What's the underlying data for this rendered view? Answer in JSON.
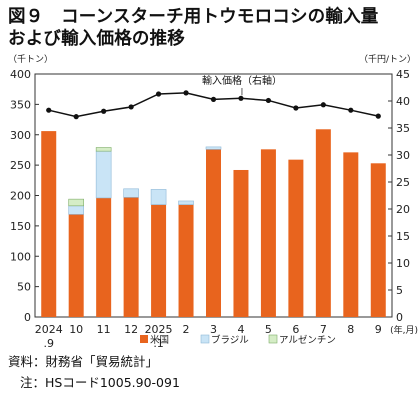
{
  "title_line1": "図９　コーンスターチ用トウモロコシの輸入量",
  "title_line2": "および輸入価格の推移",
  "source_label": "資料：財務省「貿易統計」",
  "note_label": "注：HSコード1005.90-091",
  "colors": {
    "us": "#e8641e",
    "brazil": "#c9e4f6",
    "argentina": "#d5edc6",
    "line": "#111111"
  },
  "chart_data": {
    "type": "bar",
    "stacked": true,
    "categories": [
      "2024\n.9",
      "10",
      "11",
      "12",
      "2025\n.1",
      "2",
      "3",
      "4",
      "5",
      "6",
      "7",
      "8",
      "9"
    ],
    "x_unit": "(年,月)",
    "left_axis": {
      "label": "（千トン）",
      "ylim": [
        0,
        400
      ],
      "ticks": [
        0,
        50,
        100,
        150,
        200,
        250,
        300,
        350,
        400
      ]
    },
    "right_axis": {
      "label": "（千円/トン）",
      "ylim": [
        0,
        45
      ],
      "ticks": [
        0,
        5,
        10,
        15,
        20,
        25,
        30,
        35,
        40,
        45
      ]
    },
    "series": [
      {
        "name": "米国",
        "axis": "left",
        "kind": "bar",
        "color": "#e8641e",
        "values": [
          306,
          169,
          196,
          197,
          185,
          185,
          276,
          242,
          276,
          259,
          309,
          271,
          253
        ]
      },
      {
        "name": "ブラジル",
        "axis": "left",
        "kind": "bar",
        "color": "#c9e4f6",
        "values": [
          0,
          14,
          77,
          14,
          25,
          6,
          4,
          0,
          0,
          0,
          0,
          0,
          0
        ]
      },
      {
        "name": "アルゼンチン",
        "axis": "left",
        "kind": "bar",
        "color": "#d5edc6",
        "values": [
          0,
          11,
          6,
          0,
          0,
          0,
          0,
          0,
          0,
          0,
          0,
          0,
          0
        ]
      },
      {
        "name": "輸入価格（右軸）",
        "axis": "right",
        "kind": "line",
        "color": "#111111",
        "values": [
          38.3,
          37.1,
          38.1,
          38.9,
          41.3,
          41.5,
          40.3,
          40.5,
          40.1,
          38.7,
          39.3,
          38.3,
          37.2
        ]
      }
    ],
    "annotation": "輸入価格（右軸）",
    "legend_position": "bottom",
    "grid": false
  }
}
